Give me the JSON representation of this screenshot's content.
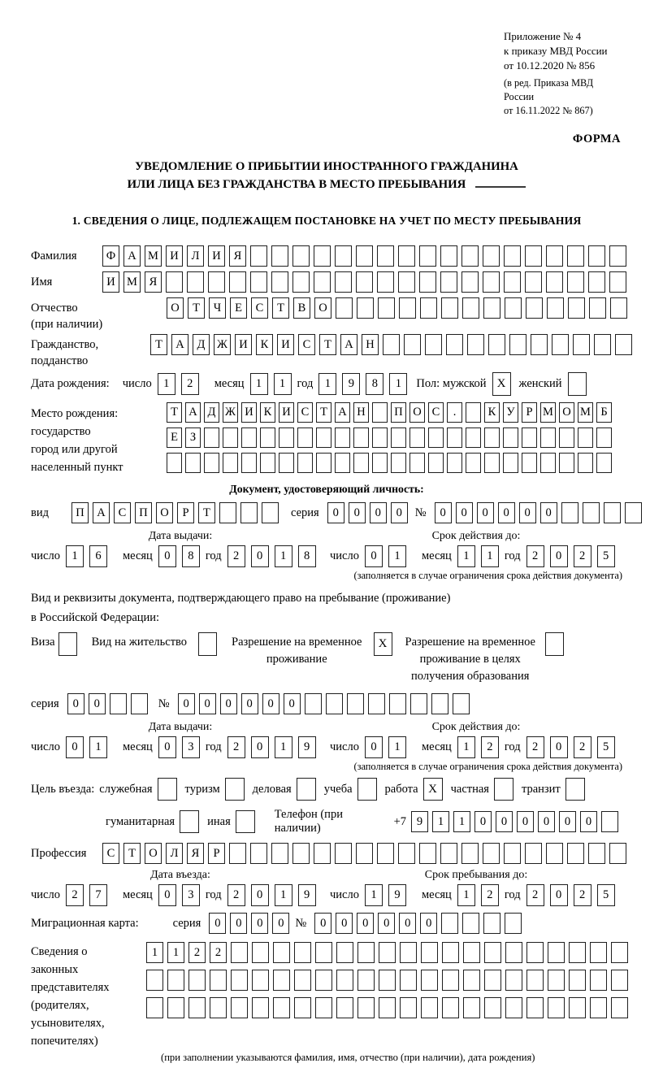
{
  "header": {
    "annex_lines": [
      "Приложение № 4",
      "к приказу МВД России",
      "от 10.12.2020 № 856"
    ],
    "edition_lines": [
      "(в ред. Приказа МВД России",
      "от 16.11.2022 № 867)"
    ],
    "form_label": "ФОРМА"
  },
  "title": {
    "line1": "УВЕДОМЛЕНИЕ О ПРИБЫТИИ ИНОСТРАННОГО ГРАЖДАНИНА",
    "line2": "ИЛИ ЛИЦА БЕЗ ГРАЖДАНСТВА В МЕСТО ПРЕБЫВАНИЯ"
  },
  "section1": {
    "heading": "1. СВЕДЕНИЯ О ЛИЦЕ, ПОДЛЕЖАЩЕМ ПОСТАНОВКЕ НА УЧЕТ ПО МЕСТУ ПРЕБЫВАНИЯ"
  },
  "date_labels": {
    "day": "число",
    "month": "месяц",
    "year": "год"
  },
  "fields": {
    "surname": {
      "label": "Фамилия",
      "cells": {
        "value": "ФАМИЛИЯ",
        "count": 25
      }
    },
    "firstname": {
      "label": "Имя",
      "cells": {
        "value": "ИМЯ",
        "count": 25
      }
    },
    "patronymic": {
      "label1": "Отчество",
      "label2": "(при наличии)",
      "cells": {
        "value": "ОТЧЕСТВО",
        "count": 22
      }
    },
    "citizenship": {
      "label1": "Гражданство,",
      "label2": "подданство",
      "cells": {
        "value": "ТАДЖИКИСТАН",
        "count": 23
      }
    },
    "birth_date": {
      "label": "Дата рождения:",
      "day": "12",
      "month": "11",
      "year": "1981"
    },
    "gender": {
      "label": "Пол: мужской",
      "male_checked": "X",
      "female_label": "женский",
      "female_checked": ""
    },
    "birth_place": {
      "labels": [
        "Место рождения:",
        "государство",
        "город или другой",
        "населенный пункт"
      ],
      "rows": [
        {
          "value": "ТАДЖИКИСТАН ПОС. КУРМОМБ",
          "count": 24
        },
        {
          "value": "ЕЗ",
          "count": 24
        },
        {
          "value": "",
          "count": 24
        }
      ]
    }
  },
  "identity_doc": {
    "heading": "Документ, удостоверяющий личность:",
    "type_label": "вид",
    "type_cells": {
      "value": "ПАСПОРТ",
      "count": 10
    },
    "series_label": "серия",
    "series_cells": {
      "value": "0000",
      "count": 4
    },
    "number_label": "№",
    "number_cells": {
      "value": "000000",
      "count": 10
    },
    "issue": {
      "heading": "Дата выдачи:",
      "day": "16",
      "month": "08",
      "year": "2018"
    },
    "expiry": {
      "heading": "Срок действия до:",
      "day": "01",
      "month": "11",
      "year": "2025"
    },
    "note": "(заполняется в случае ограничения срока действия документа)"
  },
  "residence_doc": {
    "intro1": "Вид и реквизиты документа, подтверждающего право на пребывание (проживание)",
    "intro2": "в Российской Федерации:",
    "options": [
      {
        "lines": [
          "Виза"
        ],
        "checked": ""
      },
      {
        "lines": [
          "Вид на жительство"
        ],
        "checked": ""
      },
      {
        "lines": [
          "Разрешение на временное",
          "проживание"
        ],
        "checked": "X"
      },
      {
        "lines": [
          "Разрешение на временное",
          "проживание в целях",
          "получения образования"
        ],
        "checked": ""
      }
    ],
    "series_label": "серия",
    "series_cells": {
      "value": "00",
      "count": 4
    },
    "number_label": "№",
    "number_cells": {
      "value": "000000",
      "count": 14
    },
    "issue": {
      "heading": "Дата выдачи:",
      "day": "01",
      "month": "03",
      "year": "2019"
    },
    "expiry": {
      "heading": "Срок действия до:",
      "day": "01",
      "month": "12",
      "year": "2025"
    },
    "note": "(заполняется в случае ограничения срока действия документа)"
  },
  "visit": {
    "purpose_label": "Цель въезда:",
    "purposes": [
      {
        "label": "служебная",
        "checked": ""
      },
      {
        "label": "туризм",
        "checked": ""
      },
      {
        "label": "деловая",
        "checked": ""
      },
      {
        "label": "учеба",
        "checked": ""
      },
      {
        "label": "работа",
        "checked": "X"
      },
      {
        "label": "частная",
        "checked": ""
      },
      {
        "label": "транзит",
        "checked": ""
      },
      {
        "label": "гуманитарная",
        "checked": ""
      },
      {
        "label": "иная",
        "checked": ""
      }
    ],
    "phone_label": "Телефон (при наличии)",
    "phone_prefix": "+7",
    "phone_cells": {
      "value": "911000000",
      "count": 10
    },
    "profession_label": "Профессия",
    "profession_cells": {
      "value": "СТОЛЯР",
      "count": 25
    },
    "entry": {
      "heading": "Дата въезда:",
      "day": "27",
      "month": "03",
      "year": "2019"
    },
    "stay": {
      "heading": "Срок пребывания до:",
      "day": "19",
      "month": "12",
      "year": "2025"
    }
  },
  "migration_card": {
    "label": "Миграционная карта:",
    "series_label": "серия",
    "series_cells": {
      "value": "0000",
      "count": 4
    },
    "number_label": "№",
    "number_cells": {
      "value": "000000",
      "count": 10
    }
  },
  "representatives": {
    "labels": [
      "Сведения о",
      "законных",
      "представителях",
      "(родителях,",
      "усыновителях,",
      "попечителях)"
    ],
    "rows": [
      {
        "value": "1122",
        "count": 23
      },
      {
        "value": "",
        "count": 23
      },
      {
        "value": "",
        "count": 23
      }
    ],
    "note": "(при заполнении указываются фамилия, имя, отчество (при наличии), дата рождения)"
  }
}
